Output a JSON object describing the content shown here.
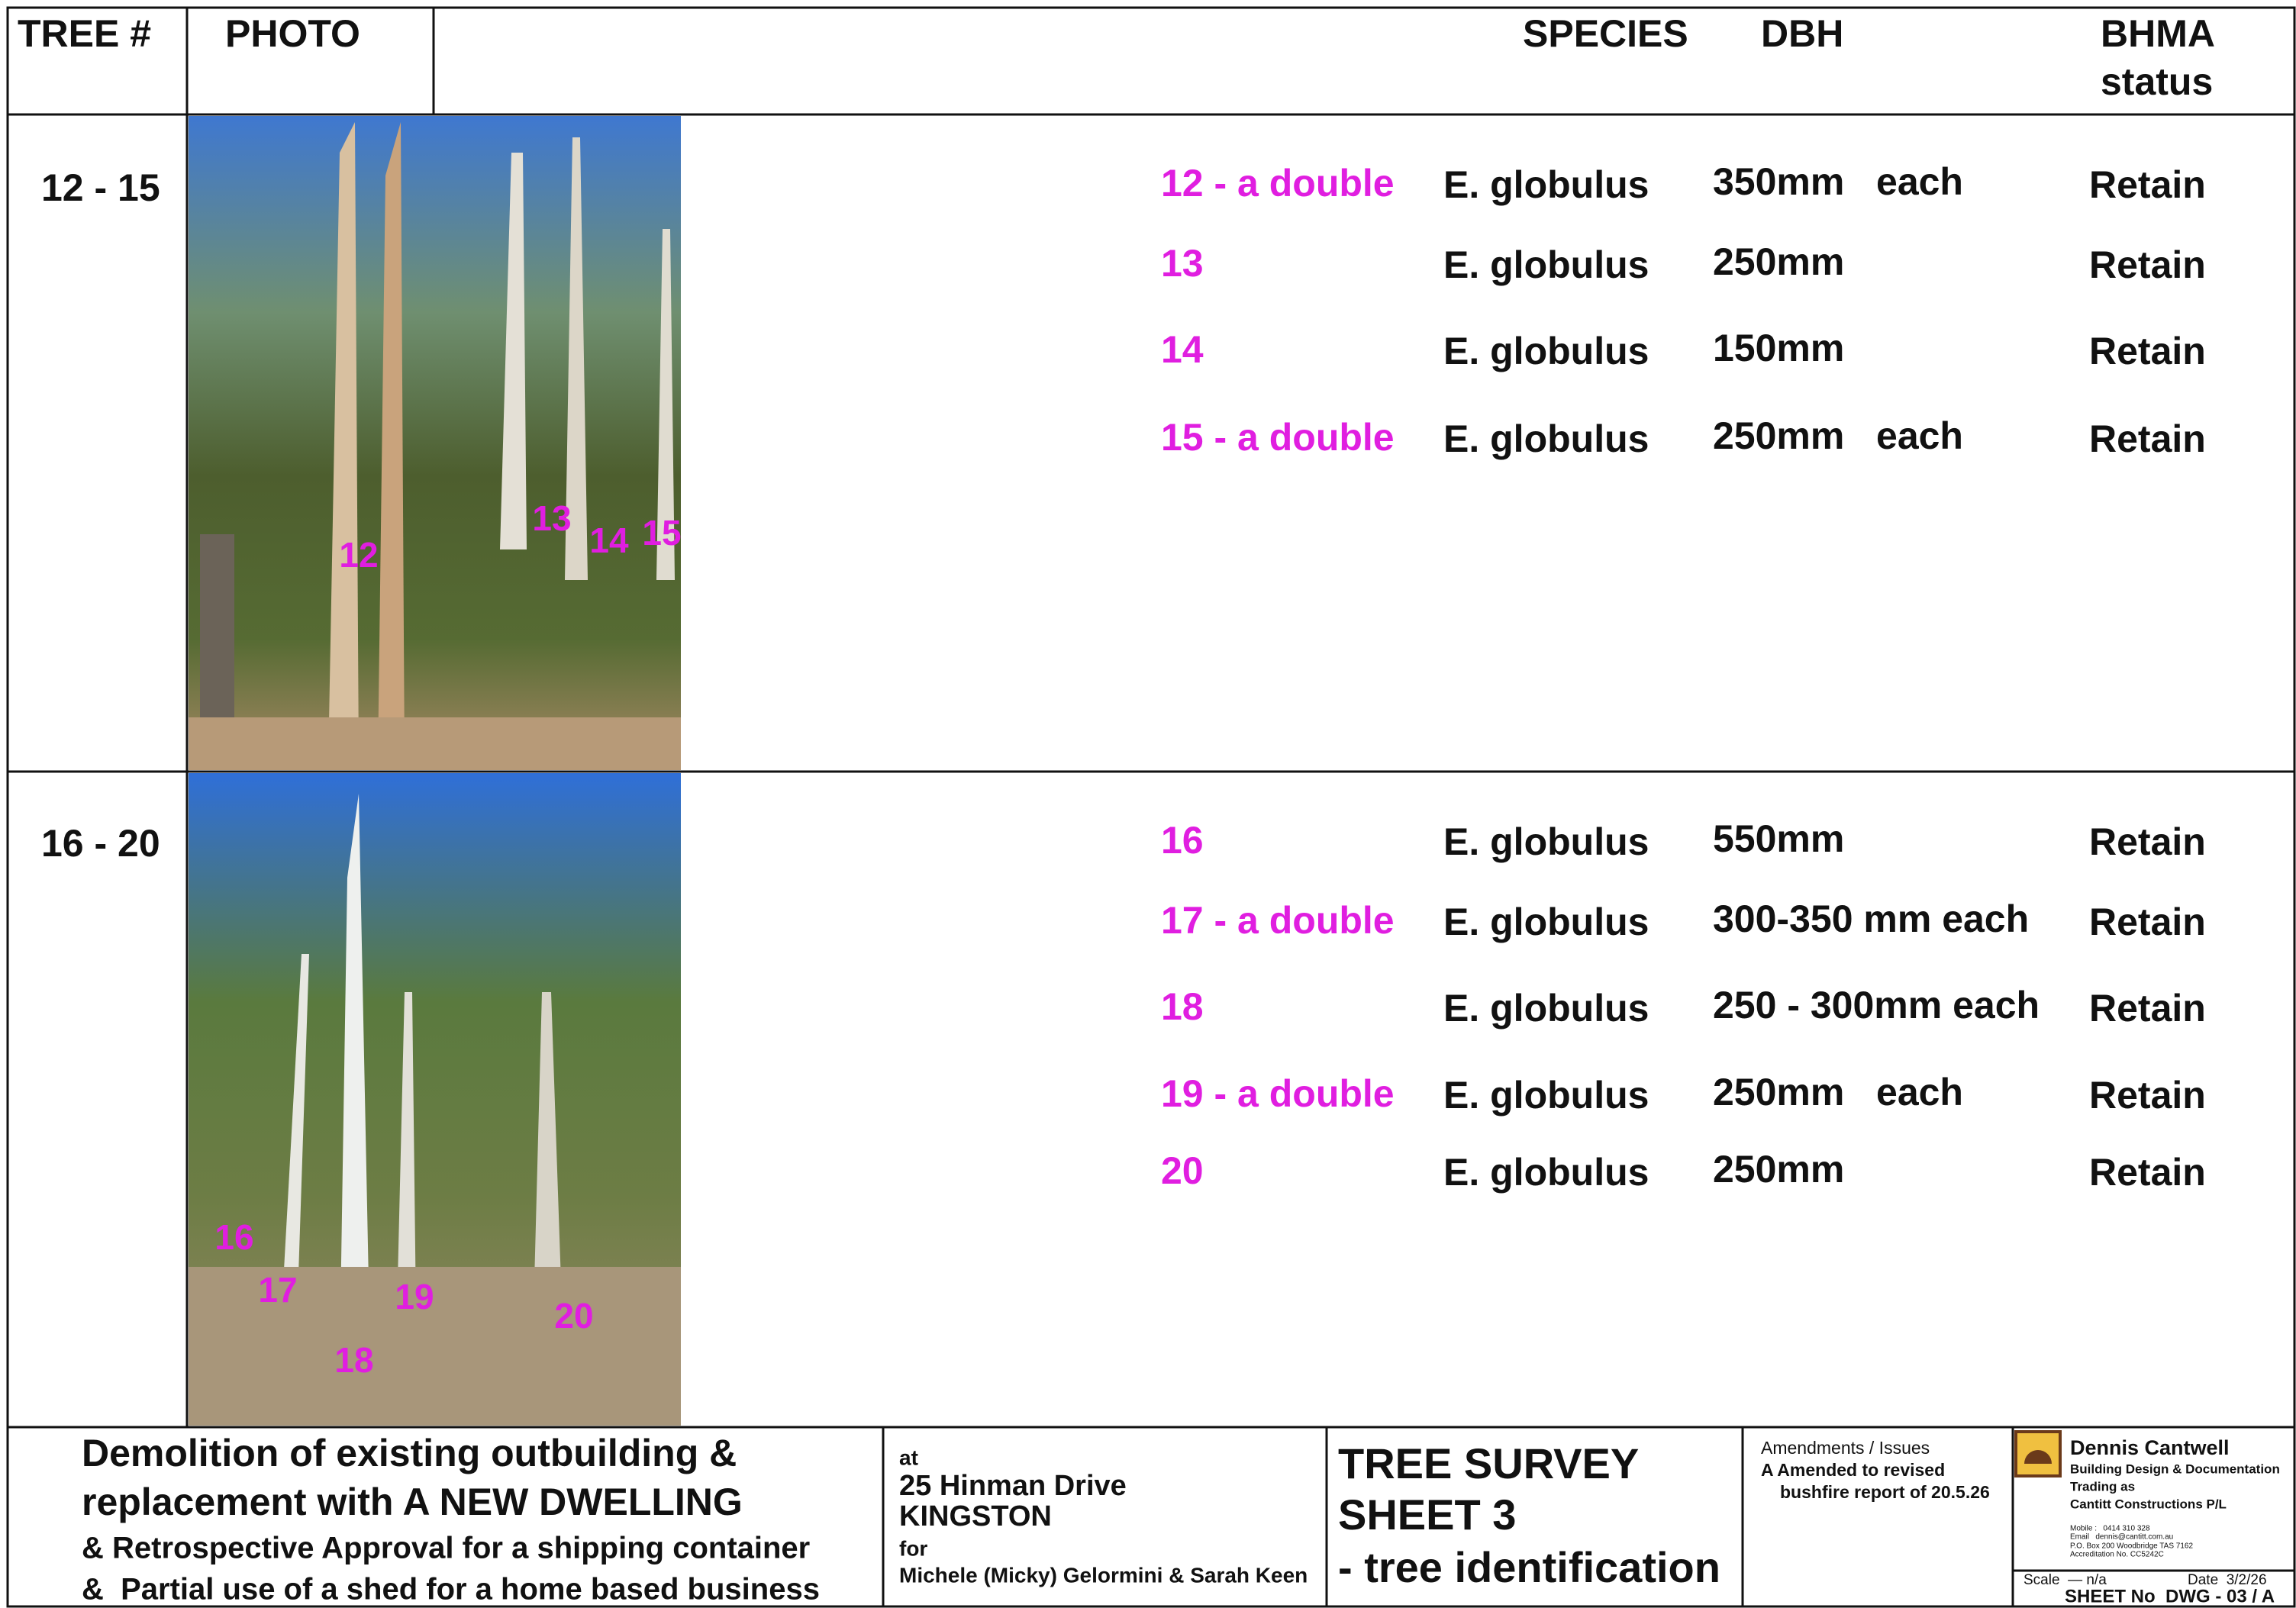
{
  "header": {
    "tree_no": "TREE #",
    "photo": "PHOTO",
    "species": "SPECIES",
    "dbh": "DBH",
    "bhma": "BHMA",
    "status": "status"
  },
  "groups": [
    {
      "range": "12 - 15",
      "photo_labels": [
        "12",
        "13",
        "14",
        "15"
      ],
      "rows": [
        {
          "tree": "12 - a double",
          "species": "E. globulus",
          "dbh": "350mm   each",
          "status": "Retain"
        },
        {
          "tree": "13",
          "species": "E. globulus",
          "dbh": "250mm",
          "status": "Retain"
        },
        {
          "tree": "14",
          "species": "E. globulus",
          "dbh": "150mm",
          "status": "Retain"
        },
        {
          "tree": "15 - a double",
          "species": "E. globulus",
          "dbh": "250mm   each",
          "status": "Retain"
        }
      ]
    },
    {
      "range": "16 - 20",
      "photo_labels": [
        "16",
        "17",
        "18",
        "19",
        "20"
      ],
      "rows": [
        {
          "tree": "16",
          "species": "E. globulus",
          "dbh": "550mm",
          "status": "Retain"
        },
        {
          "tree": "17 - a double",
          "species": "E. globulus",
          "dbh": "300-350 mm each",
          "status": "Retain"
        },
        {
          "tree": "18",
          "species": "E. globulus",
          "dbh": "250 - 300mm each",
          "status": "Retain"
        },
        {
          "tree": "19 - a double",
          "species": "E. globulus",
          "dbh": "250mm   each",
          "status": "Retain"
        },
        {
          "tree": "20",
          "species": "E. globulus",
          "dbh": "250mm",
          "status": "Retain"
        }
      ]
    }
  ],
  "title_block": {
    "project": [
      "Demolition of existing outbuilding &",
      "replacement with A NEW DWELLING",
      "& Retrospective Approval for a shipping container",
      "&  Partial use of a shed for a home based business"
    ],
    "address": {
      "at": "at",
      "street": "25 Hinman Drive",
      "suburb": "KINGSTON",
      "for": "for",
      "clients": "Michele (Micky) Gelormini & Sarah Keen"
    },
    "sheet_title": [
      "TREE SURVEY",
      "SHEET 3",
      "- tree identification"
    ],
    "amendments": [
      "Amendments / Issues",
      "A Amended to revised",
      "bushfire report of 20.5.26"
    ],
    "firm": {
      "name": "Dennis Cantwell",
      "lines": [
        "Building Design & Documentation",
        "Trading as",
        "Cantitt Constructions P/L"
      ],
      "contact": [
        "Mobile :   0414 310 328",
        "Email   dennis@cantitt.com.au",
        "P.O. Box 200 Woodbridge TAS 7162",
        "Accreditation No. CC5242C"
      ]
    },
    "scale": "Scale  — n/a",
    "date": "Date  3/2/26",
    "sheet_no": "SHEET No  DWG - 03 / A"
  }
}
